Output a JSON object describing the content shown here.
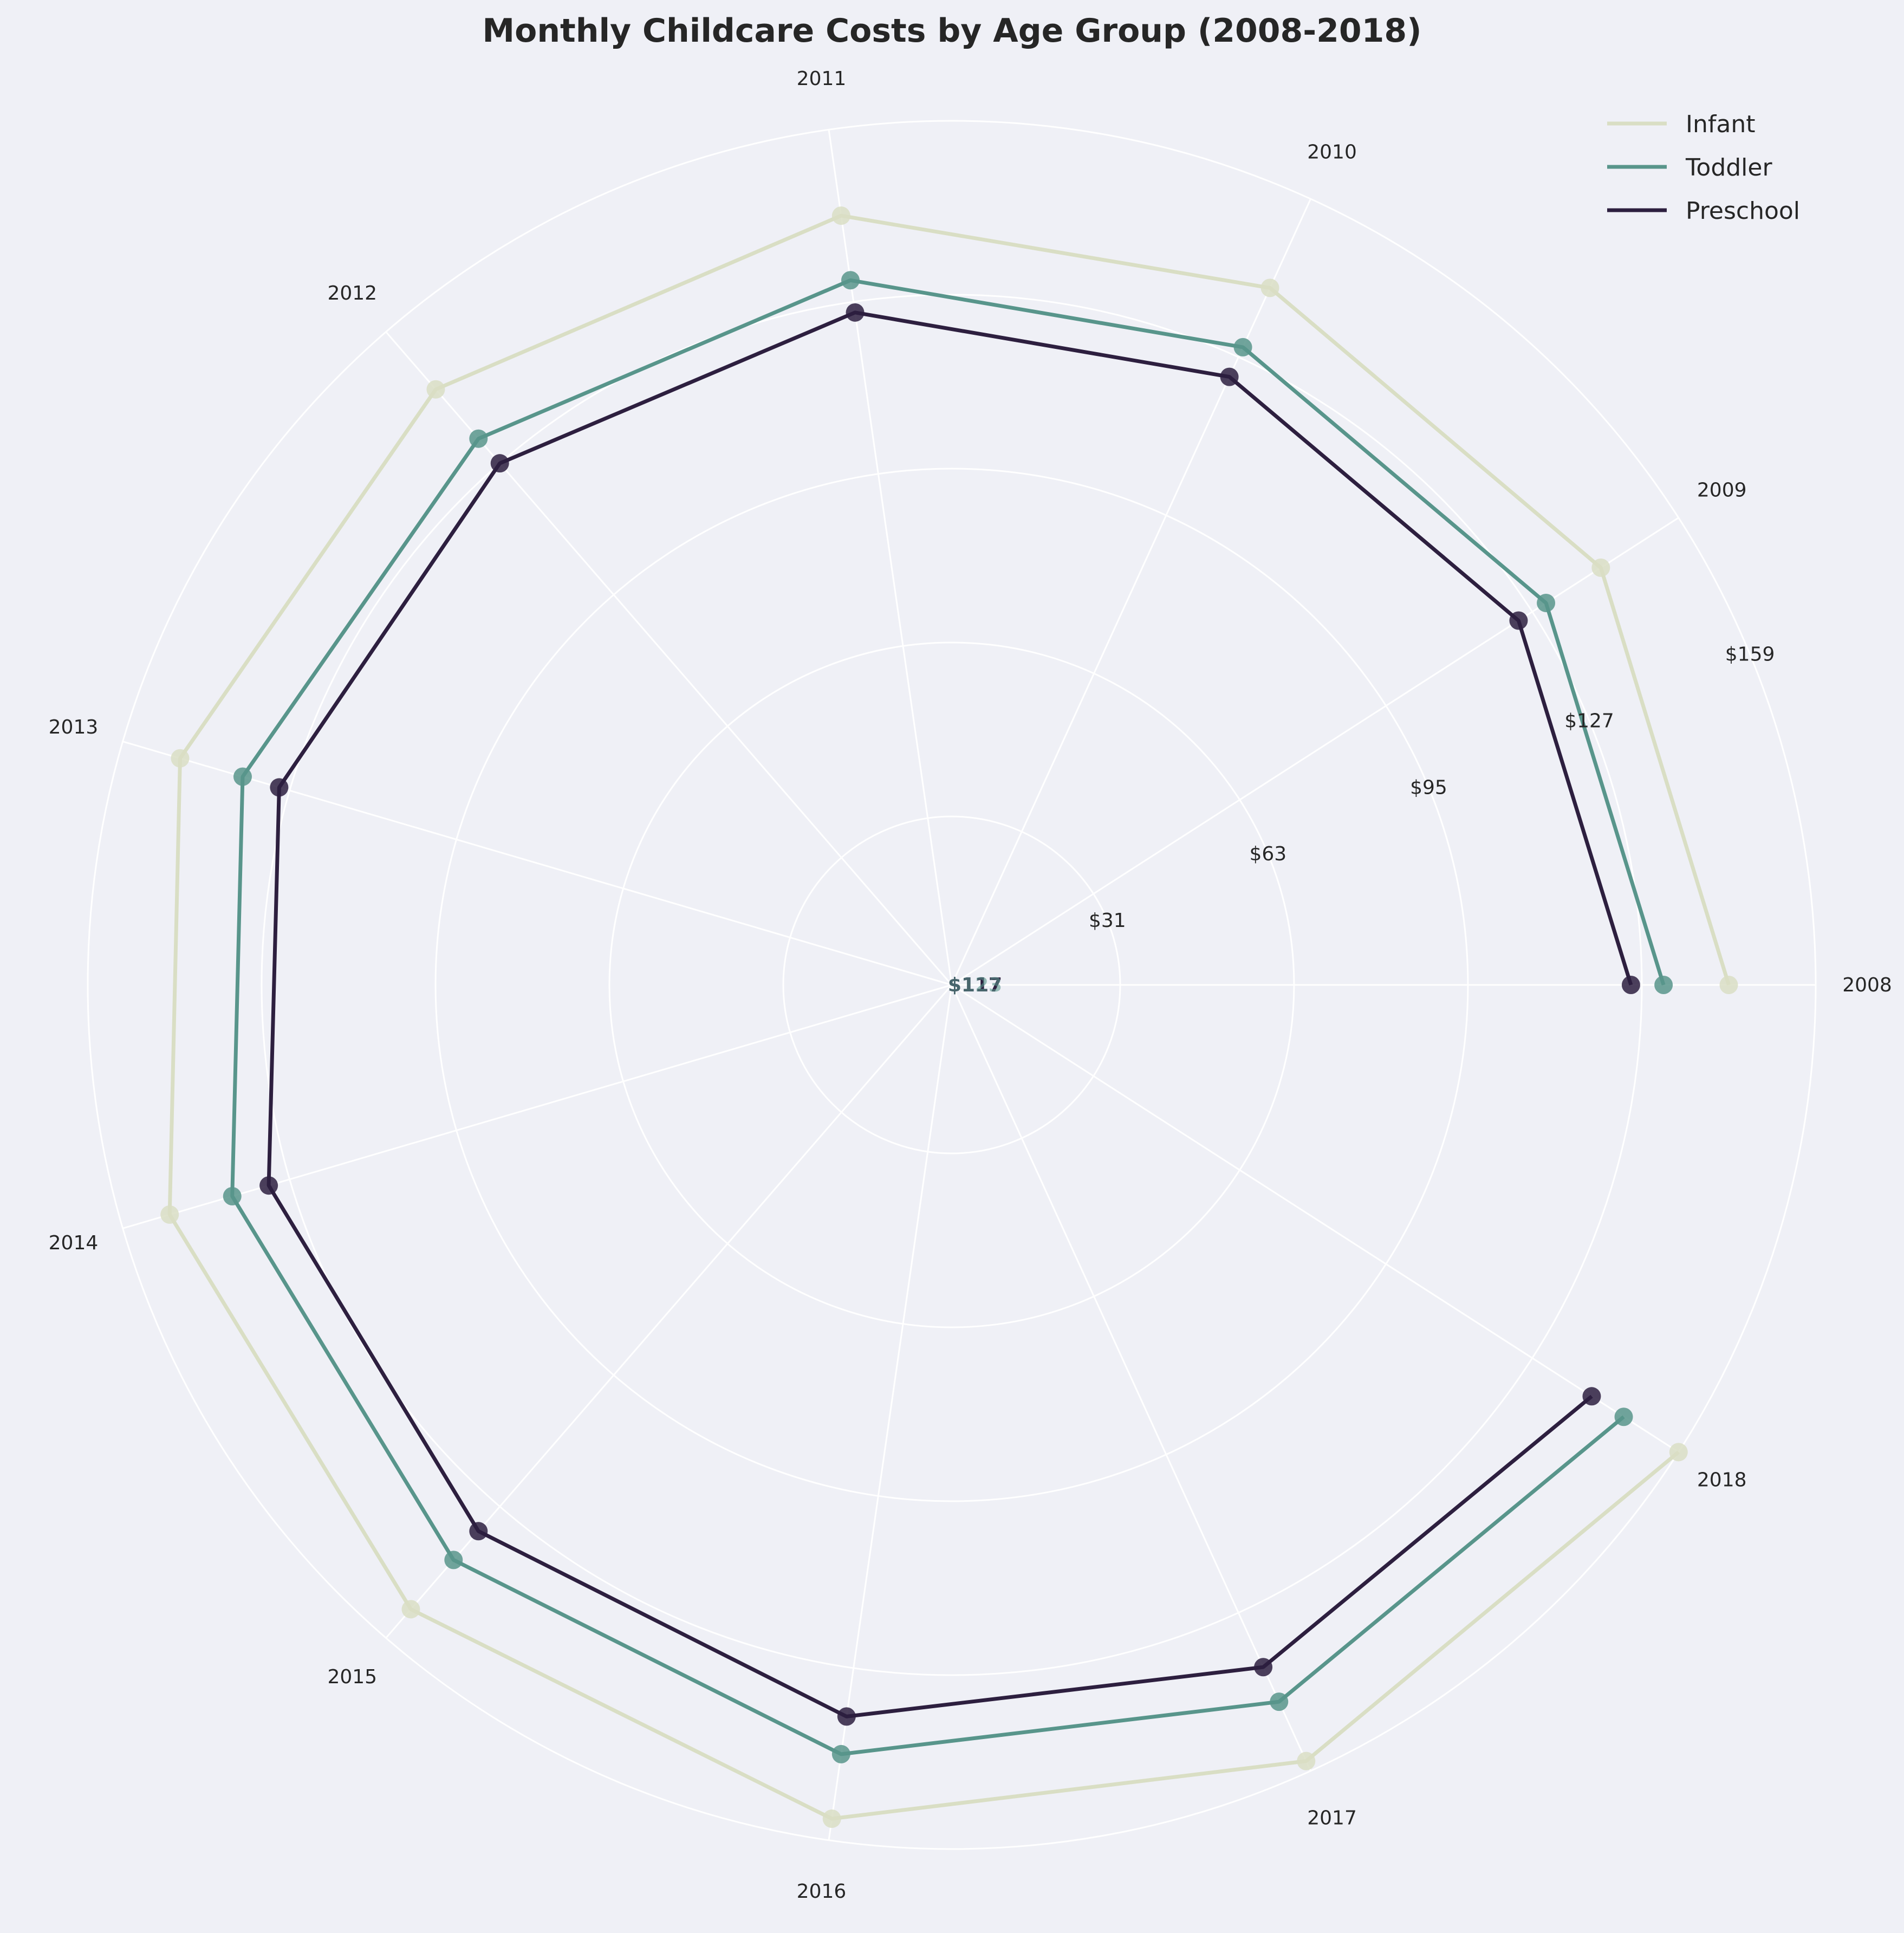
{
  "chart_data": {
    "type": "radar",
    "title": "Monthly Childcare Costs by Age Group (2008-2018)",
    "categories": [
      "2008",
      "2009",
      "2010",
      "2011",
      "2012",
      "2013",
      "2014",
      "2015",
      "2016",
      "2017",
      "2018"
    ],
    "series": [
      {
        "name": "Infant",
        "color": "#d9dec4",
        "values": [
          143,
          142,
          141,
          143,
          145,
          148,
          150,
          152,
          155,
          157,
          159
        ]
      },
      {
        "name": "Toddler",
        "color": "#58958b",
        "values": [
          131,
          130,
          129,
          131,
          133,
          136,
          138,
          140,
          143,
          145,
          147
        ]
      },
      {
        "name": "Preschool",
        "color": "#2d1f3f",
        "values": [
          125,
          124,
          123,
          125,
          127,
          129,
          131,
          133,
          136,
          138,
          140
        ]
      }
    ],
    "radial_ticks": [
      31,
      63,
      95,
      127,
      159
    ],
    "radial_tick_labels": [
      "$31",
      "$63",
      "$95",
      "$127",
      "$159"
    ],
    "center_labels": [
      "$117",
      "$123"
    ],
    "rlim": [
      0,
      159
    ],
    "grid": true,
    "legend_position": "top-right"
  }
}
